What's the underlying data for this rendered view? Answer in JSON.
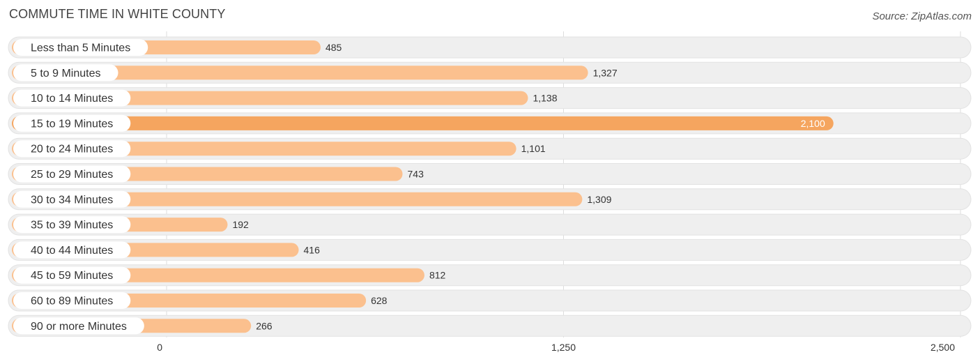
{
  "header": {
    "title": "COMMUTE TIME IN WHITE COUNTY",
    "source": "Source: ZipAtlas.com"
  },
  "colors": {
    "bar_normal": "#fbc08e",
    "bar_highlight": "#f5a55f",
    "row_background": "#efefef",
    "grid": "#dddddd"
  },
  "chart_data": {
    "type": "bar",
    "orientation": "horizontal",
    "title": "COMMUTE TIME IN WHITE COUNTY",
    "categories": [
      "Less than 5 Minutes",
      "5 to 9 Minutes",
      "10 to 14 Minutes",
      "15 to 19 Minutes",
      "20 to 24 Minutes",
      "25 to 29 Minutes",
      "30 to 34 Minutes",
      "35 to 39 Minutes",
      "40 to 44 Minutes",
      "45 to 59 Minutes",
      "60 to 89 Minutes",
      "90 or more Minutes"
    ],
    "values": [
      485,
      1327,
      1138,
      2100,
      1101,
      743,
      1309,
      192,
      416,
      812,
      628,
      266
    ],
    "value_labels": [
      "485",
      "1,327",
      "1,138",
      "2,100",
      "1,101",
      "743",
      "1,309",
      "192",
      "416",
      "812",
      "628",
      "266"
    ],
    "highlight_index": 3,
    "xlim": [
      0,
      2500
    ],
    "x_ticks": [
      0,
      1250,
      2500
    ],
    "x_tick_labels": [
      "0",
      "1,250",
      "2,500"
    ],
    "grid": true,
    "legend": "none"
  }
}
